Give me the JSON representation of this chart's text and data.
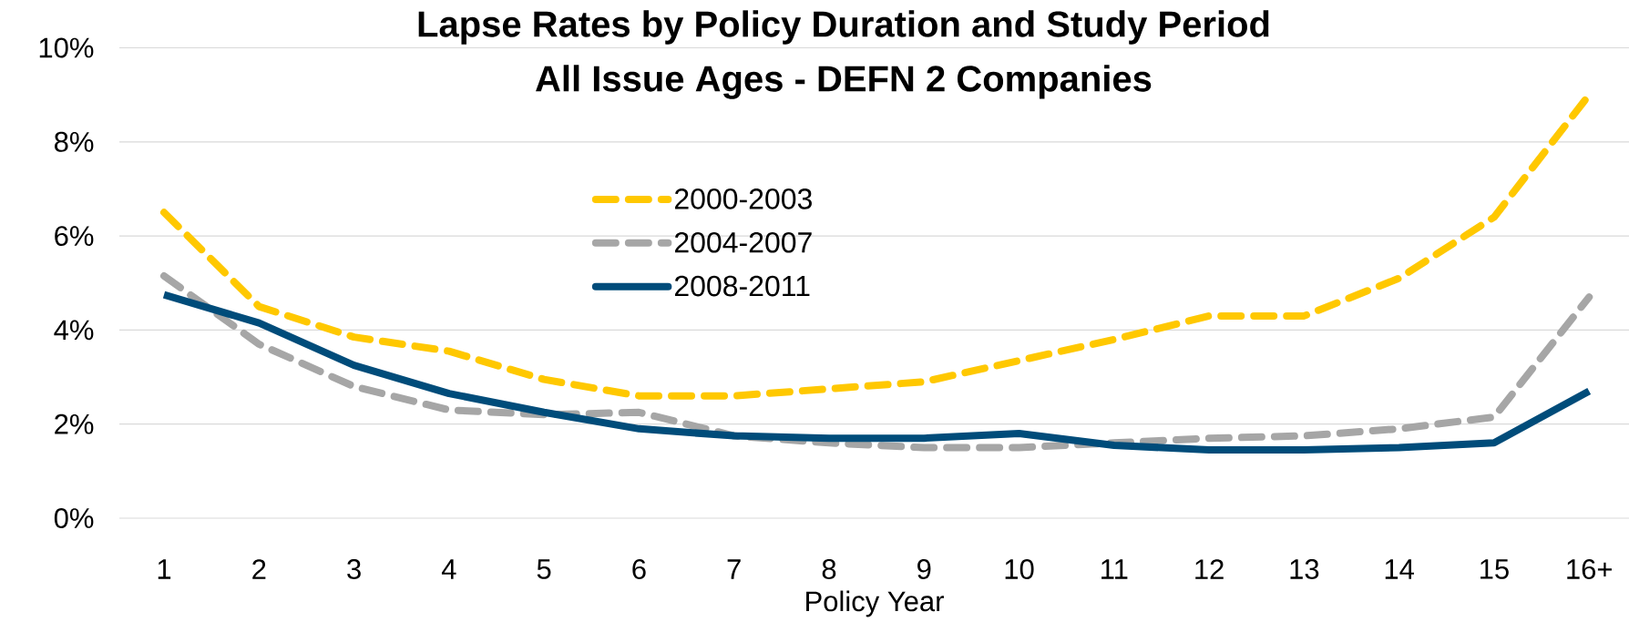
{
  "chart_data": {
    "type": "line",
    "title": "Lapse Rates by Policy Duration and Study Period",
    "subtitle": "All Issue Ages - DEFN 2 Companies",
    "xlabel": "Policy Year",
    "categories": [
      "1",
      "2",
      "3",
      "4",
      "5",
      "6",
      "7",
      "8",
      "9",
      "10",
      "11",
      "12",
      "13",
      "14",
      "15",
      "16+"
    ],
    "series": [
      {
        "name": "2000-2003",
        "color": "#ffc800",
        "line_style": "dashed",
        "values": [
          6.5,
          4.5,
          3.85,
          3.55,
          2.95,
          2.6,
          2.6,
          2.75,
          2.9,
          3.35,
          3.8,
          4.3,
          4.3,
          5.1,
          6.4,
          9.0
        ]
      },
      {
        "name": "2004-2007",
        "color": "#a6a6a6",
        "line_style": "dashed",
        "values": [
          5.15,
          3.7,
          2.8,
          2.3,
          2.2,
          2.25,
          1.75,
          1.6,
          1.5,
          1.5,
          1.6,
          1.7,
          1.75,
          1.9,
          2.15,
          4.7
        ]
      },
      {
        "name": "2008-2011",
        "color": "#004c7a",
        "line_style": "solid",
        "values": [
          4.75,
          4.15,
          3.25,
          2.65,
          2.25,
          1.9,
          1.75,
          1.7,
          1.7,
          1.8,
          1.55,
          1.45,
          1.45,
          1.5,
          1.6,
          2.7
        ]
      }
    ],
    "ylim": [
      0,
      10
    ],
    "yticks": [
      {
        "value": 0,
        "label": "0%"
      },
      {
        "value": 2,
        "label": "2%"
      },
      {
        "value": 4,
        "label": "4%"
      },
      {
        "value": 6,
        "label": "6%"
      },
      {
        "value": 8,
        "label": "8%"
      },
      {
        "value": 10,
        "label": "10%"
      }
    ],
    "grid": "y",
    "legend": "top",
    "marker": "none"
  }
}
